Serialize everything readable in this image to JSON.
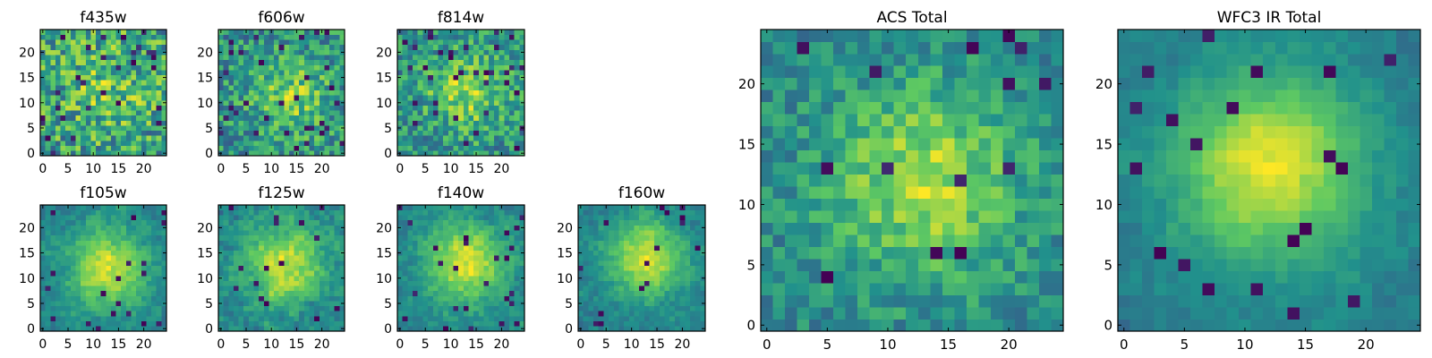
{
  "figure": {
    "background": "#ffffff",
    "colormap": "viridis",
    "colormap_stops": [
      "#440154",
      "#3b528b",
      "#21918c",
      "#5ec962",
      "#fde725"
    ]
  },
  "chart_data": [
    {
      "type": "heatmap",
      "title": "f435w",
      "grid_size": [
        25,
        25
      ],
      "xlim": [
        0,
        24
      ],
      "ylim": [
        0,
        24
      ],
      "xticks": [
        0,
        5,
        10,
        15,
        20
      ],
      "yticks": [
        0,
        5,
        10,
        15,
        20
      ],
      "origin": "lower",
      "seed": 11,
      "peak": [
        13,
        13
      ],
      "signal": 0.15,
      "noise": 0.55,
      "smooth": 0,
      "dropout": 0.05
    },
    {
      "type": "heatmap",
      "title": "f606w",
      "grid_size": [
        25,
        25
      ],
      "xlim": [
        0,
        24
      ],
      "ylim": [
        0,
        24
      ],
      "xticks": [
        0,
        5,
        10,
        15,
        20
      ],
      "yticks": [
        0,
        5,
        10,
        15,
        20
      ],
      "origin": "lower",
      "seed": 22,
      "peak": [
        14,
        11
      ],
      "signal": 0.3,
      "noise": 0.5,
      "smooth": 0,
      "dropout": 0.05
    },
    {
      "type": "heatmap",
      "title": "f814w",
      "grid_size": [
        25,
        25
      ],
      "xlim": [
        0,
        24
      ],
      "ylim": [
        0,
        24
      ],
      "xticks": [
        0,
        5,
        10,
        15,
        20
      ],
      "yticks": [
        0,
        5,
        10,
        15,
        20
      ],
      "origin": "lower",
      "seed": 33,
      "peak": [
        13,
        12
      ],
      "signal": 0.35,
      "noise": 0.5,
      "smooth": 0,
      "dropout": 0.04
    },
    {
      "type": "heatmap",
      "title": "f105w",
      "grid_size": [
        25,
        25
      ],
      "xlim": [
        0,
        24
      ],
      "ylim": [
        0,
        24
      ],
      "xticks": [
        0,
        5,
        10,
        15,
        20
      ],
      "yticks": [
        0,
        5,
        10,
        15,
        20
      ],
      "origin": "lower",
      "seed": 44,
      "peak": [
        13,
        12
      ],
      "signal": 0.6,
      "noise": 0.3,
      "smooth": 1,
      "dropout": 0.03
    },
    {
      "type": "heatmap",
      "title": "f125w",
      "grid_size": [
        25,
        25
      ],
      "xlim": [
        0,
        24
      ],
      "ylim": [
        0,
        24
      ],
      "xticks": [
        0,
        5,
        10,
        15,
        20
      ],
      "yticks": [
        0,
        5,
        10,
        15,
        20
      ],
      "origin": "lower",
      "seed": 55,
      "peak": [
        13,
        13
      ],
      "signal": 0.55,
      "noise": 0.35,
      "smooth": 1,
      "dropout": 0.03
    },
    {
      "type": "heatmap",
      "title": "f140w",
      "grid_size": [
        25,
        25
      ],
      "xlim": [
        0,
        24
      ],
      "ylim": [
        0,
        24
      ],
      "xticks": [
        0,
        5,
        10,
        15,
        20
      ],
      "yticks": [
        0,
        5,
        10,
        15,
        20
      ],
      "origin": "lower",
      "seed": 66,
      "peak": [
        13,
        13
      ],
      "signal": 0.6,
      "noise": 0.3,
      "smooth": 1,
      "dropout": 0.03
    },
    {
      "type": "heatmap",
      "title": "f160w",
      "grid_size": [
        25,
        25
      ],
      "xlim": [
        0,
        24
      ],
      "ylim": [
        0,
        24
      ],
      "xticks": [
        0,
        5,
        10,
        15,
        20
      ],
      "yticks": [
        0,
        5,
        10,
        15,
        20
      ],
      "origin": "lower",
      "seed": 77,
      "peak": [
        13,
        14
      ],
      "signal": 0.65,
      "noise": 0.3,
      "smooth": 1,
      "dropout": 0.03
    },
    {
      "type": "heatmap",
      "title": "ACS Total",
      "grid_size": [
        25,
        25
      ],
      "xlim": [
        0,
        24
      ],
      "ylim": [
        0,
        24
      ],
      "xticks": [
        0,
        5,
        10,
        15,
        20
      ],
      "yticks": [
        0,
        5,
        10,
        15,
        20
      ],
      "origin": "lower",
      "seed": 88,
      "peak": [
        13,
        12
      ],
      "signal": 0.45,
      "noise": 0.35,
      "smooth": 0,
      "dropout": 0.03
    },
    {
      "type": "heatmap",
      "title": "WFC3 IR Total",
      "grid_size": [
        25,
        25
      ],
      "xlim": [
        0,
        24
      ],
      "ylim": [
        0,
        24
      ],
      "xticks": [
        0,
        5,
        10,
        15,
        20
      ],
      "yticks": [
        0,
        5,
        10,
        15,
        20
      ],
      "origin": "lower",
      "seed": 99,
      "peak": [
        12,
        13
      ],
      "signal": 0.75,
      "noise": 0.2,
      "smooth": 1,
      "dropout": 0.03
    }
  ]
}
